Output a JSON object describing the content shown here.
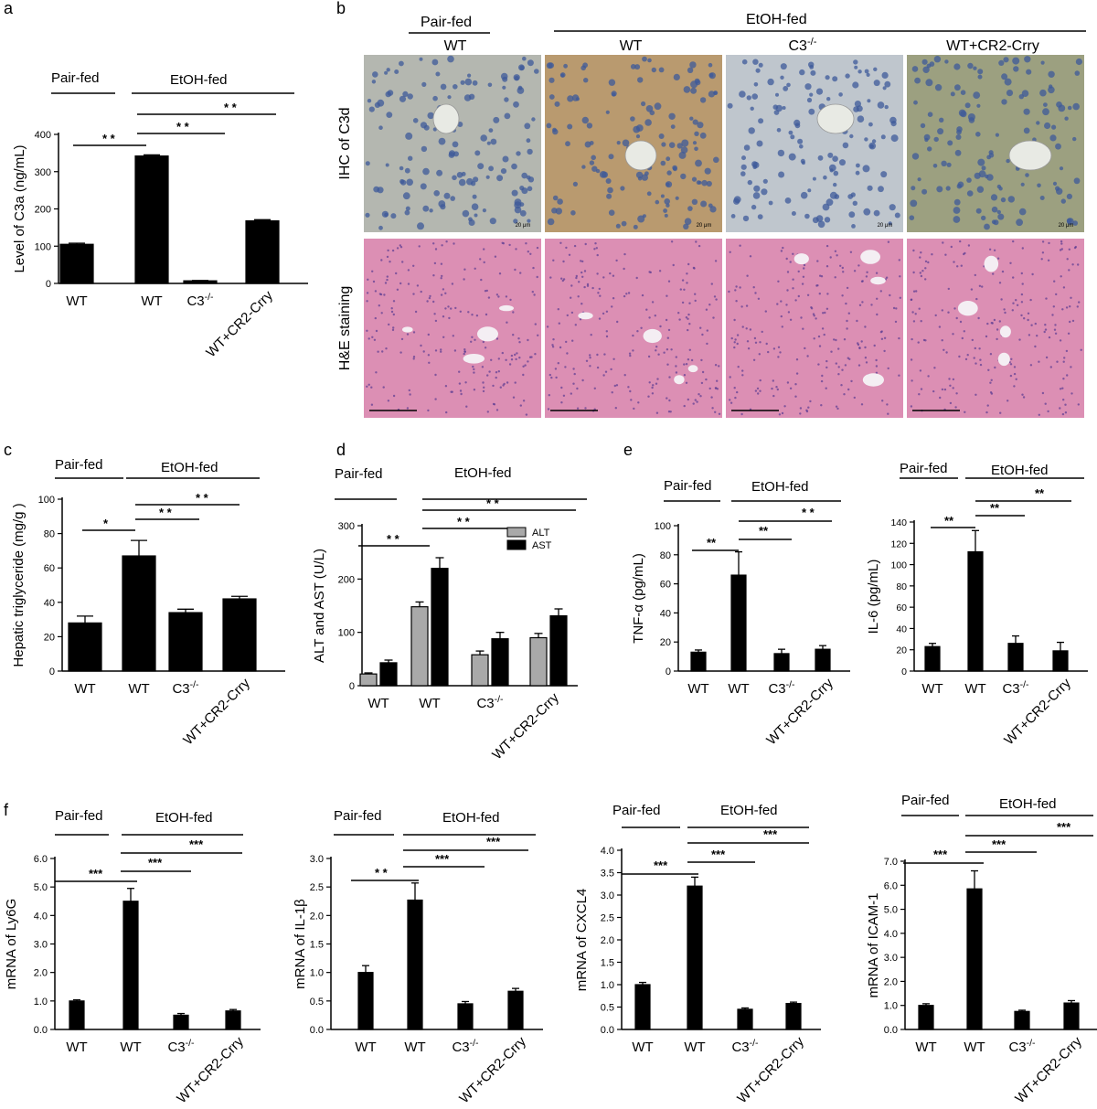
{
  "panels": [
    {
      "letter": "a"
    },
    {
      "letter": "b"
    },
    {
      "letter": "c"
    },
    {
      "letter": "d"
    },
    {
      "letter": "e"
    },
    {
      "letter": "f"
    }
  ],
  "group_labels": {
    "pair": "Pair-fed",
    "etoh": "EtOH-fed"
  },
  "histology": {
    "columns": [
      "WT",
      "WT",
      "C3-/-",
      "WT+CR2-Crry"
    ],
    "row_labels": [
      "IHC of C3d",
      "H&E staining"
    ],
    "scale_texts": [
      "20 μm",
      "20 μm",
      "20 μm",
      "20 μm"
    ],
    "colors": {
      "ihc_pair": "#b4b7b0",
      "ihc_etoh_wt": "#b99a6f",
      "ihc_c3": "#bfc6cd",
      "ihc_cr2": "#9ca080",
      "nuclei": "#3d5a9a",
      "he_bg": "#dc8fb4",
      "he_nuclei": "#5a3b92"
    }
  },
  "chart_data": [
    {
      "id": "a",
      "type": "bar",
      "categories": [
        "WT",
        "WT",
        "C3-/-",
        "WT+CR2-Crry"
      ],
      "values": [
        105,
        342,
        7,
        168
      ],
      "errors": [
        3,
        3,
        1,
        3
      ],
      "ylabel": "Level of C3a (ng/mL)",
      "ylim": [
        0,
        400
      ],
      "ticks": [
        0,
        100,
        200,
        300,
        400
      ],
      "significance": [
        "* *",
        "* *",
        "* *"
      ],
      "grid": false
    },
    {
      "id": "c",
      "type": "bar",
      "categories": [
        "WT",
        "WT",
        "C3-/-",
        "WT+CR2-Crry"
      ],
      "values": [
        28,
        67,
        34,
        42
      ],
      "errors": [
        4,
        9,
        2,
        1.5
      ],
      "ylabel": "Hepatic triglyceride (mg/g )",
      "ylim": [
        0,
        100
      ],
      "ticks": [
        0,
        20,
        40,
        60,
        80,
        100
      ],
      "significance": [
        "*",
        "* *",
        "* *"
      ],
      "grid": false
    },
    {
      "id": "d",
      "type": "bar",
      "categories": [
        "WT",
        "WT",
        "C3-/-",
        "WT+CR2-Crry"
      ],
      "series": [
        {
          "name": "ALT",
          "values": [
            22,
            148,
            58,
            90
          ],
          "errors": [
            2,
            9,
            7,
            8
          ],
          "color": "#a9a9a9"
        },
        {
          "name": "AST",
          "values": [
            43,
            220,
            88,
            131
          ],
          "errors": [
            5,
            20,
            12,
            13
          ],
          "color": "#000000"
        }
      ],
      "ylabel": "ALT and AST (U/L)",
      "ylim": [
        0,
        300
      ],
      "ticks": [
        0,
        100,
        200,
        300
      ],
      "significance": [
        "* *",
        "* *",
        "* *"
      ],
      "legend": "top-right",
      "grid": false
    },
    {
      "id": "e1",
      "type": "bar",
      "categories": [
        "WT",
        "WT",
        "C3-/-",
        "WT+CR2-Crry"
      ],
      "values": [
        13,
        66,
        12,
        15
      ],
      "errors": [
        1.5,
        16,
        3,
        2.5
      ],
      "ylabel": "TNF-α (pg/mL)",
      "ylim": [
        0,
        100
      ],
      "ticks": [
        0,
        20,
        40,
        60,
        80,
        100
      ],
      "significance": [
        "**",
        "**",
        "* *"
      ],
      "grid": false
    },
    {
      "id": "e2",
      "type": "bar",
      "categories": [
        "WT",
        "WT",
        "C3-/-",
        "WT+CR2-Crry"
      ],
      "values": [
        23,
        112,
        26,
        19
      ],
      "errors": [
        3,
        20,
        7,
        8
      ],
      "ylabel": "IL-6 (pg/mL)",
      "ylim": [
        0,
        140
      ],
      "ticks": [
        0,
        20,
        40,
        60,
        80,
        100,
        120,
        140
      ],
      "significance": [
        "**",
        "**",
        "**"
      ],
      "grid": false
    },
    {
      "id": "f1",
      "type": "bar",
      "categories": [
        "WT",
        "WT",
        "C3-/-",
        "WT+CR2-Crry"
      ],
      "values": [
        1.0,
        4.5,
        0.5,
        0.65
      ],
      "errors": [
        0.04,
        0.45,
        0.06,
        0.05
      ],
      "ylabel": "mRNA of Ly6G",
      "ylim": [
        0,
        6
      ],
      "ticks": [
        0,
        1,
        2,
        3,
        4,
        5,
        6
      ],
      "tick_labels": [
        "0.0",
        "1.0",
        "2.0",
        "3.0",
        "4.0",
        "5.0",
        "6.0"
      ],
      "significance": [
        "***",
        "***",
        "***"
      ],
      "grid": false
    },
    {
      "id": "f2",
      "type": "bar",
      "categories": [
        "WT",
        "WT",
        "C3-/-",
        "WT+CR2-Crry"
      ],
      "values": [
        1.0,
        2.27,
        0.45,
        0.67
      ],
      "errors": [
        0.12,
        0.3,
        0.04,
        0.05
      ],
      "ylabel": "mRNA of IL-1β",
      "ylim": [
        0,
        3
      ],
      "ticks": [
        0,
        0.5,
        1,
        1.5,
        2,
        2.5,
        3
      ],
      "tick_labels": [
        "0.0",
        "0.5",
        "1.0",
        "1.5",
        "2.0",
        "2.5",
        "3.0"
      ],
      "significance": [
        "* *",
        "***",
        "***"
      ],
      "grid": false
    },
    {
      "id": "f3",
      "type": "bar",
      "categories": [
        "WT",
        "WT",
        "C3-/-",
        "WT+CR2-Crry"
      ],
      "values": [
        1.0,
        3.2,
        0.45,
        0.58
      ],
      "errors": [
        0.05,
        0.2,
        0.03,
        0.03
      ],
      "ylabel": "mRNA of CXCL4",
      "ylim": [
        0,
        4
      ],
      "ticks": [
        0,
        0.5,
        1,
        1.5,
        2,
        2.5,
        3,
        3.5,
        4
      ],
      "tick_labels": [
        "0.0",
        "0.5",
        "1.0",
        "1.5",
        "2.0",
        "2.5",
        "3.0",
        "3.5",
        "4.0"
      ],
      "significance": [
        "***",
        "***",
        "***"
      ],
      "grid": false
    },
    {
      "id": "f4",
      "type": "bar",
      "categories": [
        "WT",
        "WT",
        "C3-/-",
        "WT+CR2-Crry"
      ],
      "values": [
        1.0,
        5.85,
        0.75,
        1.1
      ],
      "errors": [
        0.07,
        0.75,
        0.05,
        0.1
      ],
      "ylabel": "mRNA of ICAM-1",
      "ylim": [
        0,
        7
      ],
      "ticks": [
        0,
        1,
        2,
        3,
        4,
        5,
        6,
        7
      ],
      "tick_labels": [
        "0.0",
        "1.0",
        "2.0",
        "3.0",
        "4.0",
        "5.0",
        "6.0",
        "7.0"
      ],
      "significance": [
        "***",
        "***",
        "***"
      ],
      "grid": false
    }
  ]
}
